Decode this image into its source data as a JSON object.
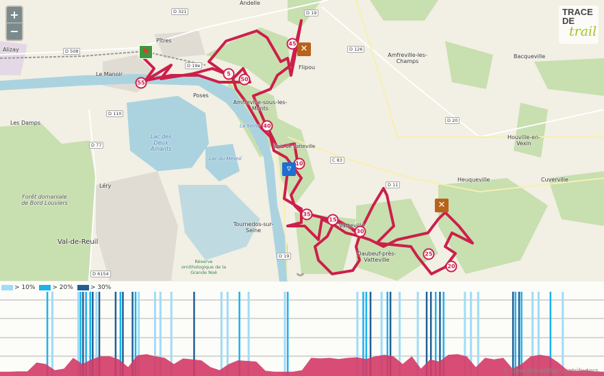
{
  "map": {
    "zoom_in": "+",
    "zoom_out": "−",
    "logo": {
      "line1": "TRACE",
      "line2": "DE",
      "line3": "trail"
    },
    "colors": {
      "route": "#cc1f4a",
      "forest": "#c8dfb0",
      "water": "#aad3df",
      "land": "#f2efe4",
      "urban": "#e0dcd4"
    },
    "places": [
      {
        "name": "Andelle"
      },
      {
        "name": "Pîtres"
      },
      {
        "name": "Alizay"
      },
      {
        "name": "Le Manoir"
      },
      {
        "name": "Poses"
      },
      {
        "name": "Flipou"
      },
      {
        "name": "Amfreville-les-Champs"
      },
      {
        "name": "Bacqueville"
      },
      {
        "name": "Amfreville-sous-les-Monts"
      },
      {
        "name": "Les Damps"
      },
      {
        "name": "Lac des Deux Amants"
      },
      {
        "name": "Léry"
      },
      {
        "name": "Forêt domaniale de Bord Louviers"
      },
      {
        "name": "Val-de-Reuil"
      },
      {
        "name": "Tournedos-sur-Seine"
      },
      {
        "name": "Réserve ornithologique de la Grande Noë"
      },
      {
        "name": "Heuqueville"
      },
      {
        "name": "Houville-en-Vexin"
      },
      {
        "name": "Cuverville"
      },
      {
        "name": "Daubeuf-près-Vatteville"
      },
      {
        "name": "Vatteville"
      },
      {
        "name": "Bois de Vatteville"
      },
      {
        "name": "Lac du Mesnil"
      },
      {
        "name": "La Seine"
      }
    ],
    "roads": [
      "D 321",
      "D 19",
      "D 508",
      "D 19e",
      "D 126",
      "D 110",
      "D 77",
      "D 20",
      "C 83",
      "D 11",
      "D 6154"
    ],
    "km_markers": [
      "5",
      "10",
      "15",
      "20",
      "25",
      "30",
      "35",
      "40",
      "45",
      "50",
      "55"
    ],
    "pois": [
      {
        "type": "restaurant-icon"
      },
      {
        "type": "restaurant-icon"
      },
      {
        "type": "water-point-icon"
      },
      {
        "type": "start-flag-icon"
      }
    ]
  },
  "profile": {
    "toggle_icon": "chevron-double-down-icon",
    "legend": [
      {
        "label": "> 10%",
        "color": "#9edcf7"
      },
      {
        "label": "> 20%",
        "color": "#1ab2ef"
      },
      {
        "label": "> 30%",
        "color": "#1f5f96"
      }
    ],
    "elevation_profile": [
      0.05,
      0.05,
      0.06,
      0.06,
      0.35,
      0.3,
      0.1,
      0.15,
      0.5,
      0.3,
      0.45,
      0.55,
      0.55,
      0.45,
      0.2,
      0.58,
      0.62,
      0.55,
      0.5,
      0.3,
      0.48,
      0.45,
      0.42,
      0.2,
      0.1,
      0.3,
      0.42,
      0.4,
      0.38,
      0.08,
      0.05,
      0.05,
      0.05,
      0.1,
      0.5,
      0.48,
      0.5,
      0.46,
      0.5,
      0.52,
      0.46,
      0.55,
      0.6,
      0.55,
      0.3,
      0.55,
      0.15,
      0.45,
      0.38,
      0.6,
      0.62,
      0.55,
      0.2,
      0.5,
      0.45,
      0.5,
      0.15,
      0.3,
      0.55,
      0.6,
      0.55,
      0.35,
      0.1,
      0.08,
      0.1,
      0.06,
      0.05
    ],
    "slope_bars": [
      {
        "pos": 0.077,
        "c": 1
      },
      {
        "pos": 0.085,
        "c": 0
      },
      {
        "pos": 0.128,
        "c": 0
      },
      {
        "pos": 0.132,
        "c": 1
      },
      {
        "pos": 0.136,
        "c": 2
      },
      {
        "pos": 0.141,
        "c": 1
      },
      {
        "pos": 0.148,
        "c": 1
      },
      {
        "pos": 0.152,
        "c": 2
      },
      {
        "pos": 0.158,
        "c": 0
      },
      {
        "pos": 0.163,
        "c": 2
      },
      {
        "pos": 0.19,
        "c": 2
      },
      {
        "pos": 0.198,
        "c": 1
      },
      {
        "pos": 0.202,
        "c": 2
      },
      {
        "pos": 0.218,
        "c": 2
      },
      {
        "pos": 0.223,
        "c": 1
      },
      {
        "pos": 0.228,
        "c": 0
      },
      {
        "pos": 0.255,
        "c": 0
      },
      {
        "pos": 0.264,
        "c": 0
      },
      {
        "pos": 0.282,
        "c": 0
      },
      {
        "pos": 0.32,
        "c": 2
      },
      {
        "pos": 0.365,
        "c": 0
      },
      {
        "pos": 0.375,
        "c": 0
      },
      {
        "pos": 0.395,
        "c": 1
      },
      {
        "pos": 0.41,
        "c": 0
      },
      {
        "pos": 0.47,
        "c": 0
      },
      {
        "pos": 0.475,
        "c": 1
      },
      {
        "pos": 0.59,
        "c": 0
      },
      {
        "pos": 0.6,
        "c": 1
      },
      {
        "pos": 0.605,
        "c": 1
      },
      {
        "pos": 0.612,
        "c": 2
      },
      {
        "pos": 0.63,
        "c": 0
      },
      {
        "pos": 0.64,
        "c": 1
      },
      {
        "pos": 0.645,
        "c": 2
      },
      {
        "pos": 0.66,
        "c": 0
      },
      {
        "pos": 0.69,
        "c": 0
      },
      {
        "pos": 0.705,
        "c": 2
      },
      {
        "pos": 0.712,
        "c": 2
      },
      {
        "pos": 0.72,
        "c": 1
      },
      {
        "pos": 0.727,
        "c": 2
      },
      {
        "pos": 0.733,
        "c": 1
      },
      {
        "pos": 0.768,
        "c": 0
      },
      {
        "pos": 0.778,
        "c": 0
      },
      {
        "pos": 0.79,
        "c": 0
      },
      {
        "pos": 0.848,
        "c": 2
      },
      {
        "pos": 0.852,
        "c": 1
      },
      {
        "pos": 0.858,
        "c": 2
      },
      {
        "pos": 0.862,
        "c": 1
      },
      {
        "pos": 0.88,
        "c": 0
      },
      {
        "pos": 0.89,
        "c": 0
      },
      {
        "pos": 0.91,
        "c": 1
      },
      {
        "pos": 0.93,
        "c": 0
      }
    ],
    "attribution": "© OpenStreetMap contributors"
  }
}
